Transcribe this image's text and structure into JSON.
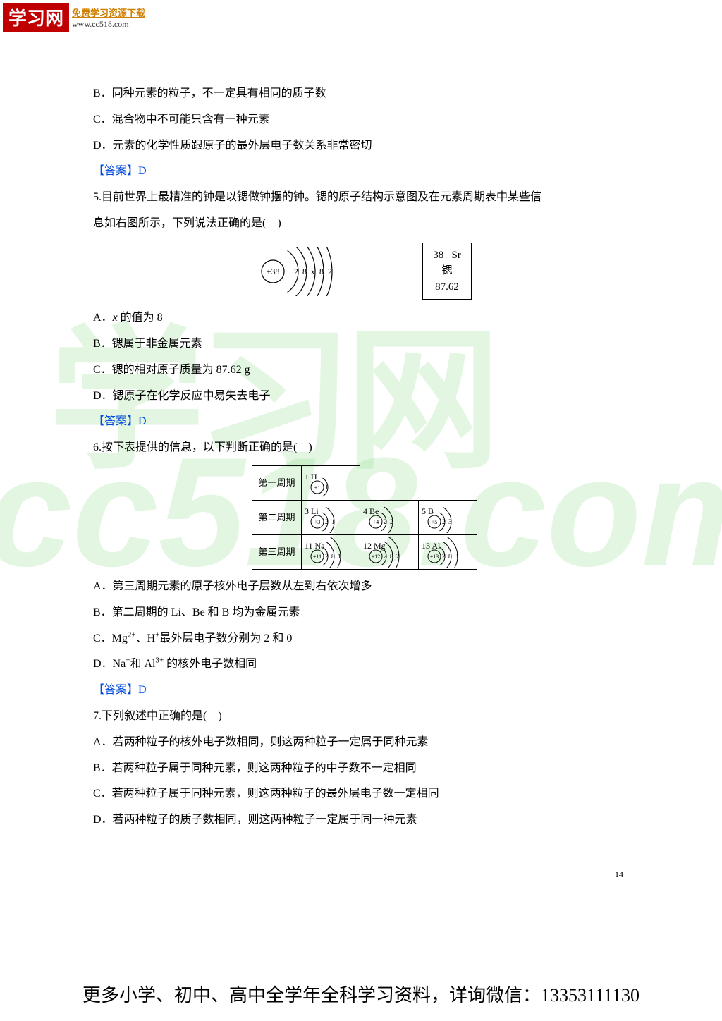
{
  "logo": {
    "main": "学习网",
    "sub1": "免费学习资源下载",
    "sub2": "www.cc518.com"
  },
  "watermark": {
    "top": "学习网",
    "bot": "cc518.com"
  },
  "q4": {
    "B": "B．同种元素的粒子，不一定具有相同的质子数",
    "C": "C．混合物中不可能只含有一种元素",
    "D": "D．元素的化学性质跟原子的最外层电子数关系非常密切",
    "ans": "【答案】D"
  },
  "q5": {
    "stem1": "5.目前世界上最精准的钟是以锶做钟摆的钟。锶的原子结构示意图及在元素周期表中某些信",
    "stem2": "息如右图所示，下列说法正确的是(　)",
    "atom": {
      "nucleus": "+38",
      "shells": [
        "2",
        "8",
        "x",
        "8",
        "2"
      ]
    },
    "element_box": {
      "num": "38",
      "sym": "Sr",
      "name": "锶",
      "mass": "87.62"
    },
    "A": "A．x 的值为 8",
    "B": "B．锶属于非金属元素",
    "C": "C．锶的相对原子质量为 87.62 g",
    "D": "D．锶原子在化学反应中易失去电子",
    "ans": "【答案】D"
  },
  "q6": {
    "stem": "6.按下表提供的信息，以下判断正确的是(　)",
    "rows": [
      "第一周期",
      "第二周期",
      "第三周期"
    ],
    "cells": {
      "r1c1": {
        "label": "1  H",
        "nucleus": "+1",
        "shells": [
          "1"
        ]
      },
      "r2c1": {
        "label": "3  Li",
        "nucleus": "+3",
        "shells": [
          "2",
          "1"
        ]
      },
      "r2c2": {
        "label": "4   Be",
        "nucleus": "+4",
        "shells": [
          "2",
          "2"
        ]
      },
      "r2c3": {
        "label": "5    B",
        "nucleus": "+5",
        "shells": [
          "2",
          "3"
        ]
      },
      "r3c1": {
        "label": "11 Na",
        "nucleus": "+11",
        "shells": [
          "2",
          "8",
          "1"
        ]
      },
      "r3c2": {
        "label": "12  Mg",
        "nucleus": "+12",
        "shells": [
          "2",
          "8",
          "2"
        ]
      },
      "r3c3": {
        "label": "13   Al",
        "nucleus": "+13",
        "shells": [
          "2",
          "8",
          "3"
        ]
      }
    },
    "A": "A．第三周期元素的原子核外电子层数从左到右依次增多",
    "B": "B．第二周期的 Li、Be 和 B 均为金属元素",
    "C_pre": "C．Mg",
    "C_sup1": "2+",
    "C_mid": "、H",
    "C_sup2": "+",
    "C_post": "最外层电子数分别为 2 和 0",
    "D_pre": "D．Na",
    "D_sup1": "+",
    "D_mid": "和 Al",
    "D_sup2": "3+",
    "D_post": " 的核外电子数相同",
    "ans": "【答案】D"
  },
  "q7": {
    "stem": "7.下列叙述中正确的是(　)",
    "A": "A．若两种粒子的核外电子数相同，则这两种粒子一定属于同种元素",
    "B": "B．若两种粒子属于同种元素，则这两种粒子的中子数不一定相同",
    "C": "C．若两种粒子属于同种元素，则这两种粒子的最外层电子数一定相同",
    "D": "D．若两种粒子的质子数相同，则这两种粒子一定属于同一种元素"
  },
  "page_num": "14",
  "footer": "更多小学、初中、高中全学年全科学习资料，详询微信：13353111130"
}
